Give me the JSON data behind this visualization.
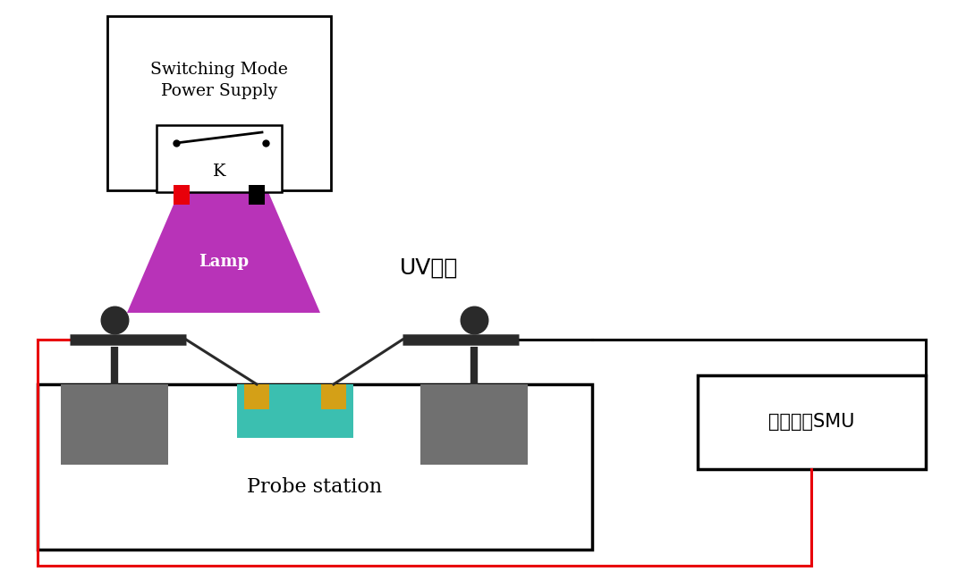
{
  "bg_color": "#ffffff",
  "fig_width": 10.8,
  "fig_height": 6.58,
  "dpi": 100,
  "black": "#000000",
  "red": "#e8000a",
  "gray": "#707070",
  "dark": "#2a2a2a",
  "teal": "#3bbfb0",
  "gold": "#d4a017",
  "purple": "#b833b8",
  "white": "#ffffff",
  "ps_label": "Switching Mode\nPower Supply",
  "switch_label": "K",
  "lamp_label": "Lamp",
  "uv_label": "UV光源",
  "probe_label": "Probe station",
  "smu_label": "数字源表SMU"
}
